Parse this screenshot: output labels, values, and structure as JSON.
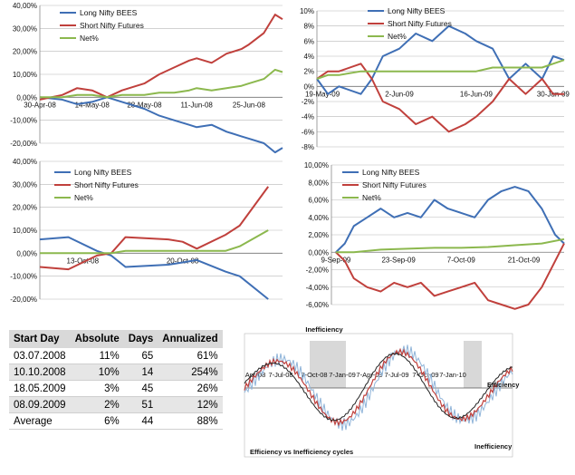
{
  "colors": {
    "long": "#3f6fb5",
    "short": "#c0403c",
    "net": "#8cb84e",
    "grid": "#b8b8b8",
    "text": "#111111"
  },
  "chart_data": [
    {
      "type": "line",
      "legend_position": "top-left",
      "ylim": [
        -0.2,
        0.4
      ],
      "yticks": [
        -0.2,
        -0.1,
        0,
        0.1,
        0.2,
        0.3,
        0.4
      ],
      "ytick_labels": [
        "-20,00%",
        "-10,00%",
        "0,00%",
        "10,00%",
        "20,00%",
        "30,00%",
        "40,00%"
      ],
      "x_range": [
        "2008-04-30",
        "2008-07-04"
      ],
      "xticks": [
        "2008-04-30",
        "2008-05-14",
        "2008-05-28",
        "2008-06-11",
        "2008-06-25"
      ],
      "xtick_labels": [
        "30-Apr-08",
        "14-May-08",
        "28-May-08",
        "11-Jun-08",
        "25-Jun-08"
      ],
      "series": [
        {
          "name": "Long Nifty BEES",
          "key": "long",
          "points": [
            [
              "2008-04-30",
              0
            ],
            [
              "2008-05-06",
              -0.01
            ],
            [
              "2008-05-10",
              -0.03
            ],
            [
              "2008-05-14",
              -0.02
            ],
            [
              "2008-05-18",
              0
            ],
            [
              "2008-05-22",
              -0.02
            ],
            [
              "2008-05-28",
              -0.05
            ],
            [
              "2008-06-01",
              -0.08
            ],
            [
              "2008-06-05",
              -0.1
            ],
            [
              "2008-06-09",
              -0.12
            ],
            [
              "2008-06-11",
              -0.13
            ],
            [
              "2008-06-15",
              -0.12
            ],
            [
              "2008-06-19",
              -0.15
            ],
            [
              "2008-06-23",
              -0.17
            ],
            [
              "2008-06-25",
              -0.18
            ],
            [
              "2008-06-29",
              -0.2
            ],
            [
              "2008-07-02",
              -0.24
            ],
            [
              "2008-07-04",
              -0.22
            ]
          ]
        },
        {
          "name": "Short Nifty  Futures",
          "key": "short",
          "points": [
            [
              "2008-04-30",
              -0.01
            ],
            [
              "2008-05-06",
              0.01
            ],
            [
              "2008-05-10",
              0.04
            ],
            [
              "2008-05-14",
              0.03
            ],
            [
              "2008-05-18",
              0
            ],
            [
              "2008-05-22",
              0.03
            ],
            [
              "2008-05-28",
              0.06
            ],
            [
              "2008-06-01",
              0.1
            ],
            [
              "2008-06-05",
              0.13
            ],
            [
              "2008-06-09",
              0.16
            ],
            [
              "2008-06-11",
              0.17
            ],
            [
              "2008-06-15",
              0.15
            ],
            [
              "2008-06-19",
              0.19
            ],
            [
              "2008-06-23",
              0.21
            ],
            [
              "2008-06-25",
              0.23
            ],
            [
              "2008-06-29",
              0.28
            ],
            [
              "2008-07-02",
              0.36
            ],
            [
              "2008-07-04",
              0.34
            ]
          ]
        },
        {
          "name": "Net%",
          "key": "net",
          "points": [
            [
              "2008-04-30",
              0
            ],
            [
              "2008-05-06",
              0
            ],
            [
              "2008-05-10",
              0.01
            ],
            [
              "2008-05-14",
              0.01
            ],
            [
              "2008-05-18",
              0
            ],
            [
              "2008-05-22",
              0.01
            ],
            [
              "2008-05-28",
              0.01
            ],
            [
              "2008-06-01",
              0.02
            ],
            [
              "2008-06-05",
              0.02
            ],
            [
              "2008-06-09",
              0.03
            ],
            [
              "2008-06-11",
              0.04
            ],
            [
              "2008-06-15",
              0.03
            ],
            [
              "2008-06-19",
              0.04
            ],
            [
              "2008-06-23",
              0.05
            ],
            [
              "2008-06-25",
              0.06
            ],
            [
              "2008-06-29",
              0.08
            ],
            [
              "2008-07-02",
              0.12
            ],
            [
              "2008-07-04",
              0.11
            ]
          ]
        }
      ]
    },
    {
      "type": "line",
      "legend_position": "top-left",
      "ylim": [
        -0.08,
        0.1
      ],
      "yticks": [
        -0.08,
        -0.06,
        -0.04,
        -0.02,
        0,
        0.02,
        0.04,
        0.06,
        0.08,
        0.1
      ],
      "ytick_labels": [
        "-8%",
        "-6%",
        "-4%",
        "-2%",
        "0%",
        "2%",
        "4%",
        "6%",
        "8%",
        "10%"
      ],
      "x_range": [
        "2009-05-18",
        "2009-07-02"
      ],
      "xticks": [
        "2009-05-19",
        "2009-06-02",
        "2009-06-16",
        "2009-06-30"
      ],
      "xtick_labels": [
        "19-May-09",
        "2-Jun-09",
        "16-Jun-09",
        "30-Jun-09"
      ],
      "series": [
        {
          "name": "Long Nifty BEES",
          "key": "long",
          "points": [
            [
              "2009-05-18",
              0.01
            ],
            [
              "2009-05-20",
              -0.01
            ],
            [
              "2009-05-22",
              0
            ],
            [
              "2009-05-26",
              -0.01
            ],
            [
              "2009-05-28",
              0.01
            ],
            [
              "2009-05-30",
              0.04
            ],
            [
              "2009-06-02",
              0.05
            ],
            [
              "2009-06-05",
              0.07
            ],
            [
              "2009-06-08",
              0.06
            ],
            [
              "2009-06-11",
              0.08
            ],
            [
              "2009-06-14",
              0.07
            ],
            [
              "2009-06-16",
              0.06
            ],
            [
              "2009-06-19",
              0.05
            ],
            [
              "2009-06-22",
              0.01
            ],
            [
              "2009-06-25",
              0.03
            ],
            [
              "2009-06-28",
              0.01
            ],
            [
              "2009-06-30",
              0.04
            ],
            [
              "2009-07-02",
              0.035
            ]
          ]
        },
        {
          "name": "Short Nifty  Futures",
          "key": "short",
          "points": [
            [
              "2009-05-18",
              0.01
            ],
            [
              "2009-05-20",
              0.02
            ],
            [
              "2009-05-22",
              0.02
            ],
            [
              "2009-05-26",
              0.03
            ],
            [
              "2009-05-28",
              0.01
            ],
            [
              "2009-05-30",
              -0.02
            ],
            [
              "2009-06-02",
              -0.03
            ],
            [
              "2009-06-05",
              -0.05
            ],
            [
              "2009-06-08",
              -0.04
            ],
            [
              "2009-06-11",
              -0.06
            ],
            [
              "2009-06-14",
              -0.05
            ],
            [
              "2009-06-16",
              -0.04
            ],
            [
              "2009-06-19",
              -0.02
            ],
            [
              "2009-06-22",
              0.01
            ],
            [
              "2009-06-25",
              -0.01
            ],
            [
              "2009-06-28",
              0.01
            ],
            [
              "2009-06-30",
              -0.01
            ],
            [
              "2009-07-02",
              -0.01
            ]
          ]
        },
        {
          "name": "Net%",
          "key": "net",
          "points": [
            [
              "2009-05-18",
              0.01
            ],
            [
              "2009-05-20",
              0.015
            ],
            [
              "2009-05-22",
              0.015
            ],
            [
              "2009-05-26",
              0.02
            ],
            [
              "2009-05-28",
              0.02
            ],
            [
              "2009-05-30",
              0.02
            ],
            [
              "2009-06-02",
              0.02
            ],
            [
              "2009-06-05",
              0.02
            ],
            [
              "2009-06-08",
              0.02
            ],
            [
              "2009-06-11",
              0.02
            ],
            [
              "2009-06-14",
              0.02
            ],
            [
              "2009-06-16",
              0.02
            ],
            [
              "2009-06-19",
              0.025
            ],
            [
              "2009-06-22",
              0.025
            ],
            [
              "2009-06-25",
              0.025
            ],
            [
              "2009-06-28",
              0.025
            ],
            [
              "2009-06-30",
              0.03
            ],
            [
              "2009-07-02",
              0.035
            ]
          ]
        }
      ]
    },
    {
      "type": "line",
      "legend_position": "top-left",
      "ylim": [
        -0.2,
        0.4
      ],
      "yticks": [
        -0.2,
        -0.1,
        0,
        0.1,
        0.2,
        0.3,
        0.4
      ],
      "ytick_labels": [
        "-20,00%",
        "-10,00%",
        "0,00%",
        "10,00%",
        "20,00%",
        "30,00%",
        "40,00%"
      ],
      "x_range": [
        "2008-10-10",
        "2008-10-27"
      ],
      "xticks": [
        "2008-10-13",
        "2008-10-20"
      ],
      "xtick_labels": [
        "13-Oct-08",
        "20-Oct-08"
      ],
      "series": [
        {
          "name": "Long Nifty BEES",
          "key": "long",
          "points": [
            [
              "2008-10-10",
              0.06
            ],
            [
              "2008-10-12",
              0.07
            ],
            [
              "2008-10-14",
              0.01
            ],
            [
              "2008-10-15",
              -0.01
            ],
            [
              "2008-10-16",
              -0.06
            ],
            [
              "2008-10-19",
              -0.05
            ],
            [
              "2008-10-20",
              -0.04
            ],
            [
              "2008-10-21",
              -0.03
            ],
            [
              "2008-10-23",
              -0.08
            ],
            [
              "2008-10-24",
              -0.1
            ],
            [
              "2008-10-26",
              -0.2
            ]
          ]
        },
        {
          "name": "Short Nifty  Futures",
          "key": "short",
          "points": [
            [
              "2008-10-10",
              -0.06
            ],
            [
              "2008-10-12",
              -0.07
            ],
            [
              "2008-10-14",
              -0.01
            ],
            [
              "2008-10-15",
              0
            ],
            [
              "2008-10-16",
              0.07
            ],
            [
              "2008-10-19",
              0.06
            ],
            [
              "2008-10-20",
              0.05
            ],
            [
              "2008-10-21",
              0.02
            ],
            [
              "2008-10-23",
              0.08
            ],
            [
              "2008-10-24",
              0.12
            ],
            [
              "2008-10-26",
              0.29
            ]
          ]
        },
        {
          "name": "Net%",
          "key": "net",
          "points": [
            [
              "2008-10-10",
              0
            ],
            [
              "2008-10-12",
              0
            ],
            [
              "2008-10-14",
              0
            ],
            [
              "2008-10-15",
              0
            ],
            [
              "2008-10-16",
              0.01
            ],
            [
              "2008-10-19",
              0.01
            ],
            [
              "2008-10-20",
              0.01
            ],
            [
              "2008-10-21",
              0.01
            ],
            [
              "2008-10-23",
              0.01
            ],
            [
              "2008-10-24",
              0.03
            ],
            [
              "2008-10-26",
              0.1
            ]
          ]
        }
      ]
    },
    {
      "type": "line",
      "legend_position": "top-left",
      "ylim": [
        -0.06,
        0.1
      ],
      "yticks": [
        -0.06,
        -0.04,
        -0.02,
        0,
        0.02,
        0.04,
        0.06,
        0.08,
        0.1
      ],
      "ytick_labels": [
        "-6,00%",
        "-4,00%",
        "-2,00%",
        "0,00%",
        "2,00%",
        "4,00%",
        "6,00%",
        "8,00%",
        "10,00%"
      ],
      "x_range": [
        "2009-09-08",
        "2009-10-30"
      ],
      "xticks": [
        "2009-09-09",
        "2009-09-23",
        "2009-10-07",
        "2009-10-21"
      ],
      "xtick_labels": [
        "9-Sep-09",
        "23-Sep-09",
        "7-Oct-09",
        "21-Oct-09"
      ],
      "series": [
        {
          "name": "Long Nifty BEES",
          "key": "long",
          "points": [
            [
              "2009-09-09",
              0
            ],
            [
              "2009-09-11",
              0.01
            ],
            [
              "2009-09-13",
              0.03
            ],
            [
              "2009-09-16",
              0.04
            ],
            [
              "2009-09-19",
              0.05
            ],
            [
              "2009-09-22",
              0.04
            ],
            [
              "2009-09-25",
              0.045
            ],
            [
              "2009-09-28",
              0.04
            ],
            [
              "2009-10-01",
              0.06
            ],
            [
              "2009-10-04",
              0.05
            ],
            [
              "2009-10-07",
              0.045
            ],
            [
              "2009-10-10",
              0.04
            ],
            [
              "2009-10-13",
              0.06
            ],
            [
              "2009-10-16",
              0.07
            ],
            [
              "2009-10-19",
              0.075
            ],
            [
              "2009-10-22",
              0.07
            ],
            [
              "2009-10-25",
              0.05
            ],
            [
              "2009-10-28",
              0.02
            ],
            [
              "2009-10-30",
              0.01
            ]
          ]
        },
        {
          "name": "Short Nifty  Futures",
          "key": "short",
          "points": [
            [
              "2009-09-09",
              0
            ],
            [
              "2009-09-11",
              -0.01
            ],
            [
              "2009-09-13",
              -0.03
            ],
            [
              "2009-09-16",
              -0.04
            ],
            [
              "2009-09-19",
              -0.045
            ],
            [
              "2009-09-22",
              -0.035
            ],
            [
              "2009-09-25",
              -0.04
            ],
            [
              "2009-09-28",
              -0.035
            ],
            [
              "2009-10-01",
              -0.05
            ],
            [
              "2009-10-04",
              -0.045
            ],
            [
              "2009-10-07",
              -0.04
            ],
            [
              "2009-10-10",
              -0.035
            ],
            [
              "2009-10-13",
              -0.055
            ],
            [
              "2009-10-16",
              -0.06
            ],
            [
              "2009-10-19",
              -0.065
            ],
            [
              "2009-10-22",
              -0.06
            ],
            [
              "2009-10-25",
              -0.04
            ],
            [
              "2009-10-28",
              -0.01
            ],
            [
              "2009-10-30",
              0.01
            ]
          ]
        },
        {
          "name": "Net%",
          "key": "net",
          "points": [
            [
              "2009-09-09",
              0
            ],
            [
              "2009-09-13",
              0
            ],
            [
              "2009-09-19",
              0.003
            ],
            [
              "2009-09-25",
              0.004
            ],
            [
              "2009-10-01",
              0.005
            ],
            [
              "2009-10-07",
              0.005
            ],
            [
              "2009-10-13",
              0.006
            ],
            [
              "2009-10-19",
              0.008
            ],
            [
              "2009-10-25",
              0.01
            ],
            [
              "2009-10-30",
              0.015
            ]
          ]
        }
      ]
    },
    {
      "type": "line",
      "title": "Efficiency vs Inefficiency cycles",
      "xtick_labels": [
        "Apr-08",
        "7-Jul-08",
        "7-Oct-08",
        "7-Jan-09",
        "7-Apr-09",
        "7-Jul-09",
        "7-Oct-09",
        "7-Jan-10"
      ],
      "annotations": [
        "Inefficiency",
        "Efficiency",
        "Inefficiency"
      ]
    }
  ],
  "table": {
    "headers": [
      "Start Day",
      "Absolute",
      "Days",
      "Annualized"
    ],
    "rows": [
      [
        "03.07.2008",
        "11%",
        "65",
        "61%"
      ],
      [
        "10.10.2008",
        "10%",
        "14",
        "254%"
      ],
      [
        "18.05.2009",
        "3%",
        "45",
        "26%"
      ],
      [
        "08.09.2009",
        "2%",
        "51",
        "12%"
      ],
      [
        "Average",
        "6%",
        "44",
        "88%"
      ]
    ]
  }
}
